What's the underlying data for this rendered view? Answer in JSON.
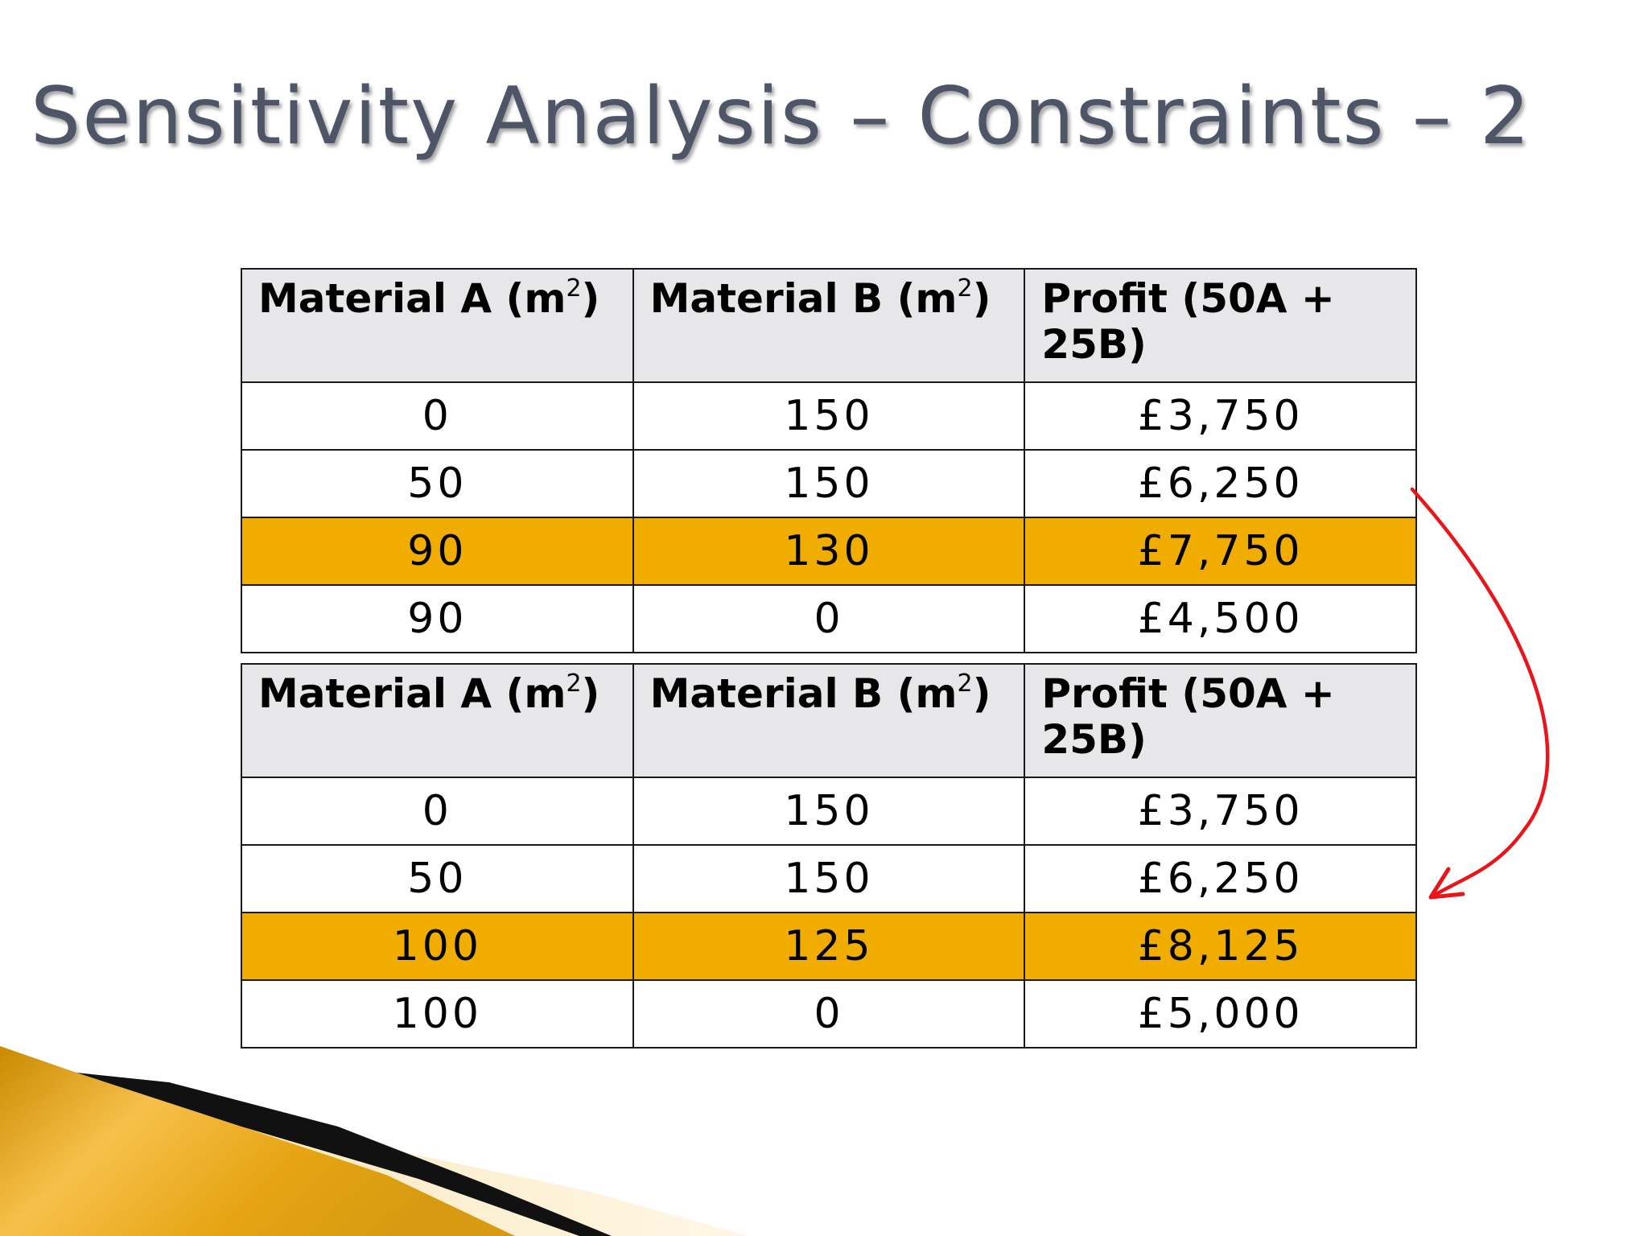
{
  "slide": {
    "title": "Sensitivity Analysis – Constraints – 2"
  },
  "tables": [
    {
      "headers": [
        {
          "label": "Material A (m",
          "sup": "2",
          "suffix": ")"
        },
        {
          "label": "Material B (m",
          "sup": "2",
          "suffix": ")"
        },
        {
          "label": "Profit (50A + 25B)",
          "sup": "",
          "suffix": ""
        }
      ],
      "rows": [
        [
          "0",
          "150",
          "£3,750"
        ],
        [
          "50",
          "150",
          "£6,250"
        ],
        [
          "90",
          "130",
          "£7,750"
        ],
        [
          "90",
          "0",
          "£4,500"
        ]
      ],
      "highlight_row": 2
    },
    {
      "headers": [
        {
          "label": "Material A (m",
          "sup": "2",
          "suffix": ")"
        },
        {
          "label": "Material B (m",
          "sup": "2",
          "suffix": ")"
        },
        {
          "label": "Profit (50A + 25B)",
          "sup": "",
          "suffix": ""
        }
      ],
      "rows": [
        [
          "0",
          "150",
          "£3,750"
        ],
        [
          "50",
          "150",
          "£6,250"
        ],
        [
          "100",
          "125",
          "£8,125"
        ],
        [
          "100",
          "0",
          "£5,000"
        ]
      ],
      "highlight_row": 2
    }
  ],
  "colors": {
    "highlight": "#f0ad00",
    "header_bg": "#e7e6e9",
    "arrow": "#e8161b",
    "title": "#4d5566"
  },
  "icons": {
    "arrow": "curved-arrow-icon",
    "corner": "gold-swoosh-decoration"
  }
}
